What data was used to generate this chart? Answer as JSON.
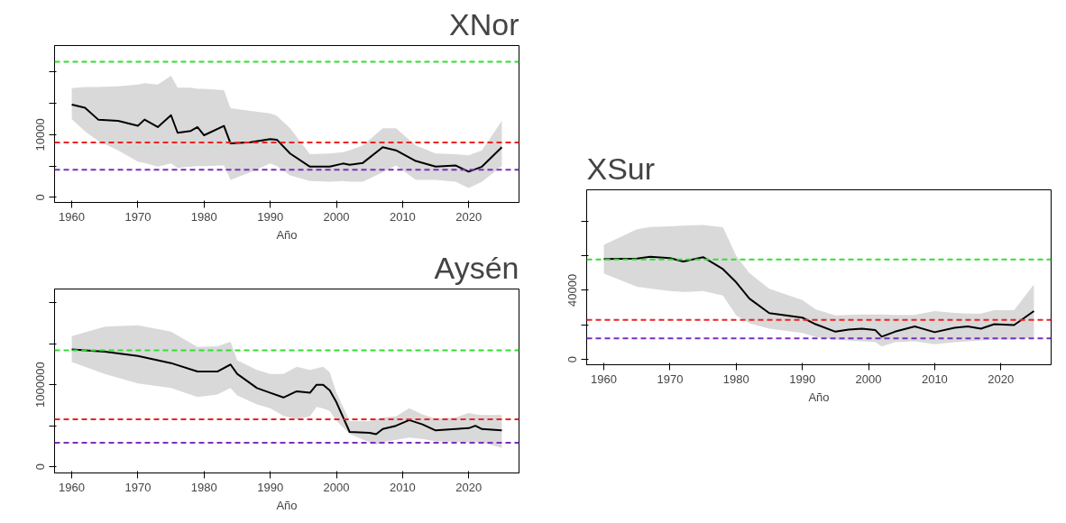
{
  "chart_data": [
    {
      "type": "line",
      "title": "XNor",
      "xlabel": "Año",
      "xlim": [
        1957.4,
        2027.6
      ],
      "xticks": [
        1960,
        1970,
        1980,
        1990,
        2000,
        2010,
        2020
      ],
      "ylim": [
        -800,
        24200
      ],
      "yticks": [
        0,
        {
          "value": 5000,
          "label": null
        },
        10000,
        {
          "value": 15000,
          "label": null
        },
        {
          "value": 20000,
          "label": null
        }
      ],
      "grid": false,
      "line_style": "solid",
      "marker": "none",
      "ref_lines": [
        {
          "axis": "y",
          "value": 21600,
          "color": "#33dd33",
          "line_style": "dashed"
        },
        {
          "axis": "y",
          "value": 8770,
          "color": "#ee2222",
          "line_style": "dashed"
        },
        {
          "axis": "y",
          "value": 4400,
          "color": "#7b2fbe",
          "line_style": "dashed"
        }
      ],
      "series": [
        {
          "color": "#000000",
          "x": [
            1960,
            1962,
            1964,
            1967,
            1970,
            1971,
            1973,
            1975,
            1976,
            1978,
            1979,
            1980,
            1983,
            1984,
            1987,
            1990,
            1991,
            1993,
            1996,
            1999,
            2001,
            2002,
            2004,
            2007,
            2009,
            2012,
            2015,
            2018,
            2020,
            2022,
            2025
          ],
          "values": [
            14800,
            14300,
            12400,
            12200,
            11400,
            12400,
            11200,
            13100,
            10300,
            10600,
            11200,
            9900,
            11400,
            8600,
            8800,
            9300,
            9200,
            7000,
            4900,
            4900,
            5400,
            5200,
            5500,
            8000,
            7500,
            5800,
            4900,
            5100,
            4100,
            4900,
            8000
          ],
          "upper": [
            17400,
            17600,
            17600,
            17700,
            18000,
            18200,
            18000,
            19400,
            17500,
            17500,
            17300,
            17300,
            17100,
            14200,
            13800,
            13400,
            13000,
            11000,
            6900,
            7000,
            7200,
            7500,
            8300,
            11000,
            11000,
            8300,
            7000,
            6900,
            6700,
            7500,
            12200
          ],
          "lower": [
            12500,
            10500,
            9000,
            7500,
            5700,
            5500,
            4900,
            5400,
            4700,
            4900,
            5000,
            5000,
            5100,
            2800,
            4000,
            5400,
            5000,
            3500,
            2600,
            2500,
            2600,
            2500,
            2500,
            4000,
            5100,
            2800,
            2800,
            2500,
            1500,
            2500,
            5000
          ]
        }
      ]
    },
    {
      "type": "line",
      "title": "XSur",
      "xlabel": "Año",
      "xlim": [
        1957.4,
        2027.6
      ],
      "xticks": [
        1960,
        1970,
        1980,
        1990,
        2000,
        2010,
        2020
      ],
      "ylim": [
        -3000,
        98000
      ],
      "yticks": [
        0,
        {
          "value": 20000,
          "label": null
        },
        40000,
        {
          "value": 60000,
          "label": null
        },
        {
          "value": 80000,
          "label": null
        }
      ],
      "grid": false,
      "line_style": "solid",
      "marker": "none",
      "ref_lines": [
        {
          "axis": "y",
          "value": 57800,
          "color": "#33dd33",
          "line_style": "dashed"
        },
        {
          "axis": "y",
          "value": 22900,
          "color": "#ee2222",
          "line_style": "dashed"
        },
        {
          "axis": "y",
          "value": 12200,
          "color": "#7b2fbe",
          "line_style": "dashed"
        }
      ],
      "series": [
        {
          "color": "#000000",
          "x": [
            1960,
            1965,
            1967,
            1970,
            1972,
            1975,
            1978,
            1980,
            1982,
            1985,
            1990,
            1992,
            1995,
            1997,
            1999,
            2001,
            2002,
            2004,
            2007,
            2010,
            2013,
            2015,
            2017,
            2019,
            2022,
            2025
          ],
          "values": [
            58100,
            58300,
            59400,
            58600,
            56600,
            59100,
            52200,
            44600,
            35200,
            26800,
            24200,
            20400,
            16100,
            17300,
            17800,
            17100,
            13200,
            16100,
            19100,
            15800,
            18300,
            19100,
            17800,
            20400,
            19900,
            28000
          ],
          "upper": [
            66200,
            75200,
            76500,
            76900,
            77300,
            77700,
            76400,
            59900,
            50000,
            40800,
            34400,
            29000,
            25500,
            25800,
            26000,
            26000,
            26000,
            25800,
            25800,
            28000,
            27000,
            26500,
            26500,
            28500,
            28500,
            43300
          ],
          "lower": [
            49700,
            42000,
            41000,
            39500,
            39000,
            39500,
            36900,
            25500,
            21000,
            17800,
            15300,
            13000,
            11500,
            11000,
            10500,
            10200,
            7600,
            10000,
            10500,
            8900,
            10000,
            10500,
            11000,
            11500,
            11500,
            12700
          ]
        }
      ]
    },
    {
      "type": "line",
      "title": "Aysén",
      "xlabel": "Año",
      "xlim": [
        1957.4,
        2027.6
      ],
      "xticks": [
        1960,
        1970,
        1980,
        1990,
        2000,
        2010,
        2020
      ],
      "ylim": [
        -75000,
        2167000
      ],
      "yticks": [
        0,
        {
          "value": 500000,
          "label": null
        },
        1000000,
        {
          "value": 1500000,
          "label": null
        },
        {
          "value": 2000000,
          "label": null
        }
      ],
      "grid": false,
      "line_style": "solid",
      "marker": "none",
      "ref_lines": [
        {
          "axis": "y",
          "value": 1420000,
          "color": "#33dd33",
          "line_style": "dashed"
        },
        {
          "axis": "y",
          "value": 580000,
          "color": "#ee2222",
          "line_style": "dashed"
        },
        {
          "axis": "y",
          "value": 293000,
          "color": "#7b2fbe",
          "line_style": "dashed"
        }
      ],
      "series": [
        {
          "color": "#000000",
          "x": [
            1960,
            1965,
            1970,
            1975,
            1979,
            1982,
            1984,
            1985,
            1988,
            1990,
            1992,
            1994,
            1996,
            1997,
            1998,
            1999,
            2000,
            2002,
            2005,
            2006,
            2007,
            2009,
            2011,
            2013,
            2015,
            2018,
            2020,
            2021,
            2022,
            2025
          ],
          "values": [
            1431000,
            1402000,
            1351000,
            1264000,
            1161000,
            1161000,
            1247000,
            1132000,
            960000,
            902000,
            845000,
            920000,
            902000,
            1000000,
            1000000,
            931000,
            787000,
            425000,
            414000,
            397000,
            460000,
            500000,
            569000,
            517000,
            443000,
            460000,
            471000,
            500000,
            460000,
            443000
          ],
          "upper": [
            1592000,
            1707000,
            1724000,
            1649000,
            1460000,
            1470000,
            1523000,
            1300000,
            1180000,
            1132000,
            1132000,
            1218000,
            1180000,
            1200000,
            1218000,
            1150000,
            902000,
            557000,
            557000,
            580000,
            600000,
            615000,
            713000,
            640000,
            586000,
            600000,
            655000,
            640000,
            630000,
            632000
          ],
          "lower": [
            1276000,
            1132000,
            1017000,
            960000,
            850000,
            880000,
            960000,
            870000,
            760000,
            713000,
            620000,
            580000,
            615000,
            730000,
            710000,
            680000,
            560000,
            400000,
            300000,
            270000,
            300000,
            330000,
            356000,
            340000,
            310000,
            305000,
            299000,
            300000,
            295000,
            230000
          ]
        }
      ]
    }
  ]
}
